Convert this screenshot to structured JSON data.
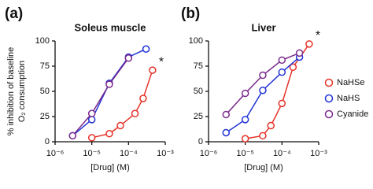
{
  "chart_data": [
    {
      "type": "line",
      "panel_label": "(a)",
      "title": "Soleus muscle",
      "x_label": "[Drug] (M)",
      "y_label": [
        "% inhibition of baseline",
        "O₂ consumption"
      ],
      "annotation": "*",
      "log_x": true,
      "xlim": [
        1e-06,
        0.001
      ],
      "xticks": [
        {
          "value": 1e-06,
          "label": "10⁻⁶"
        },
        {
          "value": 1e-05,
          "label": "10⁻⁵"
        },
        {
          "value": 0.0001,
          "label": "10⁻⁴"
        },
        {
          "value": 0.001,
          "label": "10⁻³"
        }
      ],
      "ylim": [
        0,
        100
      ],
      "yticks": [
        0,
        25,
        50,
        75,
        100
      ],
      "series": [
        {
          "color": "#e5332a",
          "x": [
            1e-05,
            3e-05,
            6e-05,
            0.00015,
            0.00025,
            0.00045
          ],
          "values": [
            4,
            8,
            16,
            28,
            43,
            71
          ]
        },
        {
          "color": "#2233d6",
          "x": [
            3e-06,
            1e-05,
            3e-05,
            0.0001,
            0.0003
          ],
          "values": [
            6,
            22,
            58,
            84,
            92
          ]
        },
        {
          "color": "#7a2a8c",
          "x": [
            3e-06,
            1e-05,
            3e-05,
            0.0001
          ],
          "values": [
            6,
            28,
            57,
            83
          ]
        }
      ]
    },
    {
      "type": "line",
      "panel_label": "(b)",
      "title": "Liver",
      "x_label": "[Drug] (M)",
      "annotation": "*",
      "log_x": true,
      "xlim": [
        1e-06,
        0.001
      ],
      "xticks": [
        {
          "value": 1e-06,
          "label": "10⁻⁶"
        },
        {
          "value": 1e-05,
          "label": "10⁻⁵"
        },
        {
          "value": 0.0001,
          "label": "10⁻⁴"
        },
        {
          "value": 0.001,
          "label": "10⁻³"
        }
      ],
      "ylim": [
        0,
        100
      ],
      "yticks": [
        0,
        25,
        50,
        75,
        100
      ],
      "legend": "right",
      "series": [
        {
          "name": "NaHSe",
          "color": "#e5332a",
          "x": [
            1e-05,
            3e-05,
            5e-05,
            0.0001,
            0.0002,
            0.00055
          ],
          "values": [
            3,
            6,
            16,
            38,
            74,
            97
          ]
        },
        {
          "name": "NaHS",
          "color": "#2233d6",
          "x": [
            3e-06,
            1e-05,
            3e-05,
            0.0001,
            0.0003
          ],
          "values": [
            9,
            22,
            51,
            69,
            84
          ]
        },
        {
          "name": "Cyanide",
          "color": "#7a2a8c",
          "x": [
            3e-06,
            1e-05,
            3e-05,
            0.0001,
            0.0003
          ],
          "values": [
            27,
            48,
            66,
            81,
            88
          ]
        }
      ]
    }
  ]
}
